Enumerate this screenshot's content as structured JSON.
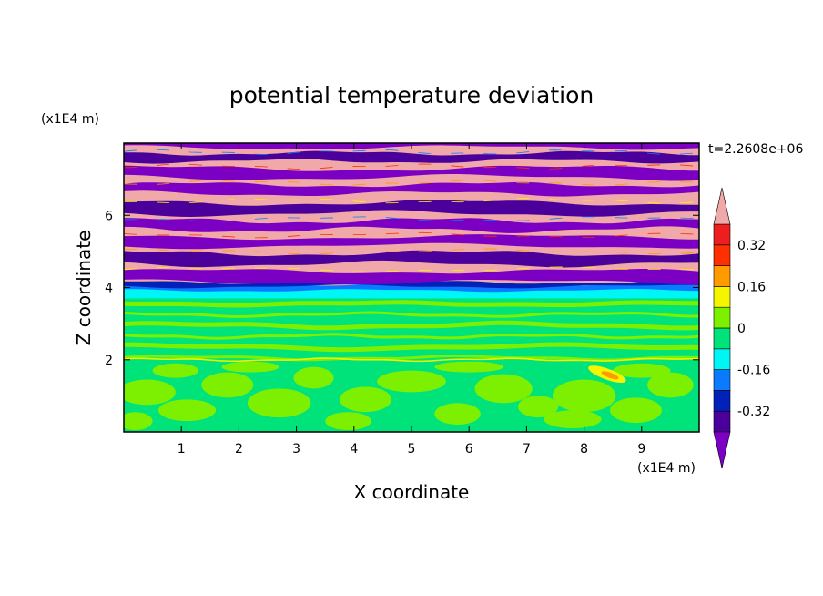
{
  "chart_data": {
    "type": "heatmap",
    "title": "potential temperature deviation",
    "xlabel": "X coordinate",
    "ylabel": "Z coordinate",
    "x_unit": "(x1E4 m)",
    "y_unit": "(x1E4 m)",
    "time_label": "t=2.2608e+06",
    "xlim": [
      0,
      10
    ],
    "ylim": [
      0,
      8
    ],
    "x_ticks": [
      1,
      2,
      3,
      4,
      5,
      6,
      7,
      8,
      9
    ],
    "y_ticks": [
      2,
      4,
      6
    ],
    "colorbar": {
      "levels": [
        -0.4,
        -0.32,
        -0.24,
        -0.16,
        -0.08,
        0,
        0.08,
        0.16,
        0.24,
        0.32,
        0.4
      ],
      "tick_labels": [
        "0.32",
        "0.16",
        "0",
        "-0.16",
        "-0.32"
      ],
      "tick_values": [
        0.32,
        0.16,
        0,
        -0.16,
        -0.32
      ],
      "colors": [
        "#7b00c3",
        "#4b009b",
        "#0022b8",
        "#0a7bff",
        "#00f5f5",
        "#00e37a",
        "#7cf000",
        "#f5f500",
        "#ff9a00",
        "#ff3000",
        "#ee1e1e",
        "#f0a8a8"
      ]
    },
    "regions": [
      {
        "z_range": [
          0,
          2.0
        ],
        "value_range": [
          -0.08,
          0.08
        ],
        "description": "mixed green and yellow-green patches"
      },
      {
        "z_range": [
          2.0,
          3.7
        ],
        "value_range": [
          -0.08,
          0.08
        ],
        "description": "green layer with thin yellow-green streaks"
      },
      {
        "z_range": [
          3.7,
          4.0
        ],
        "value_range": [
          -0.16,
          -0.08
        ],
        "description": "cyan band"
      },
      {
        "z_range": [
          4.0,
          8.0
        ],
        "value_range": [
          -0.4,
          0.4
        ],
        "description": "alternating purple and pink bands"
      }
    ]
  }
}
